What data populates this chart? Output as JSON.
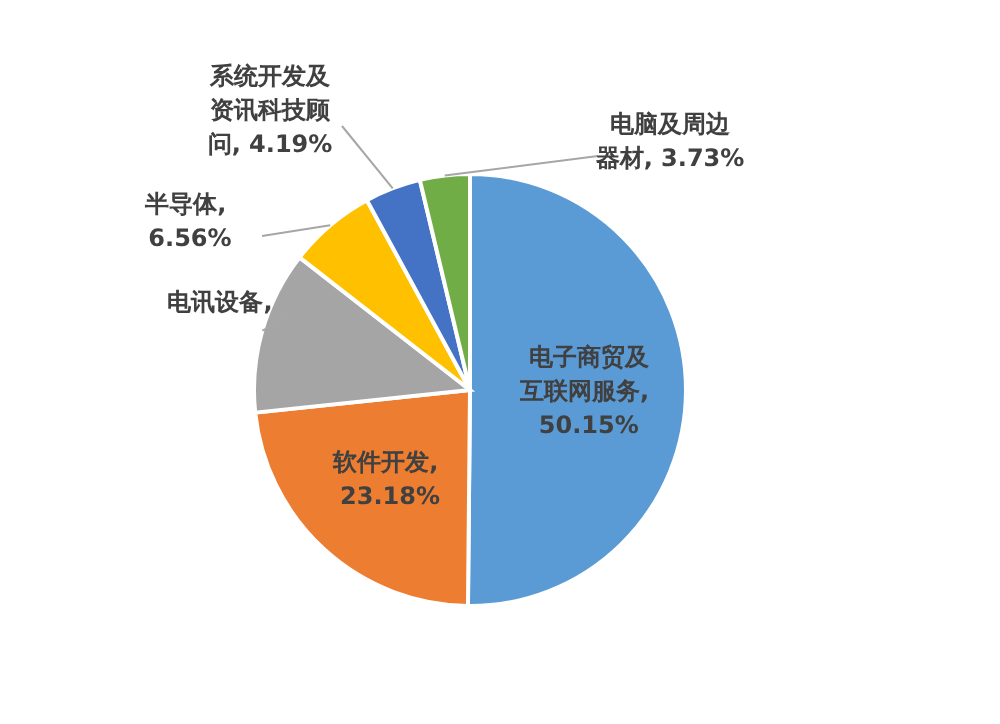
{
  "chart_data": {
    "type": "pie",
    "categories": [
      "电子商贸及互联网服务",
      "软件开发",
      "电讯设备",
      "半导体",
      "系统开发及资讯科技顾问",
      "电脑及周边器材"
    ],
    "values": [
      50.15,
      23.18,
      12.19,
      6.56,
      4.19,
      3.73
    ],
    "value_labels": [
      ", 50.15%",
      ", 23.18%",
      ",",
      ", 6.56%",
      ", 4.19%",
      ", 3.73%"
    ],
    "colors": [
      "#5b9bd5",
      "#ed7d31",
      "#a5a5a5",
      "#ffc000",
      "#4472c4",
      "#70ad47"
    ]
  }
}
